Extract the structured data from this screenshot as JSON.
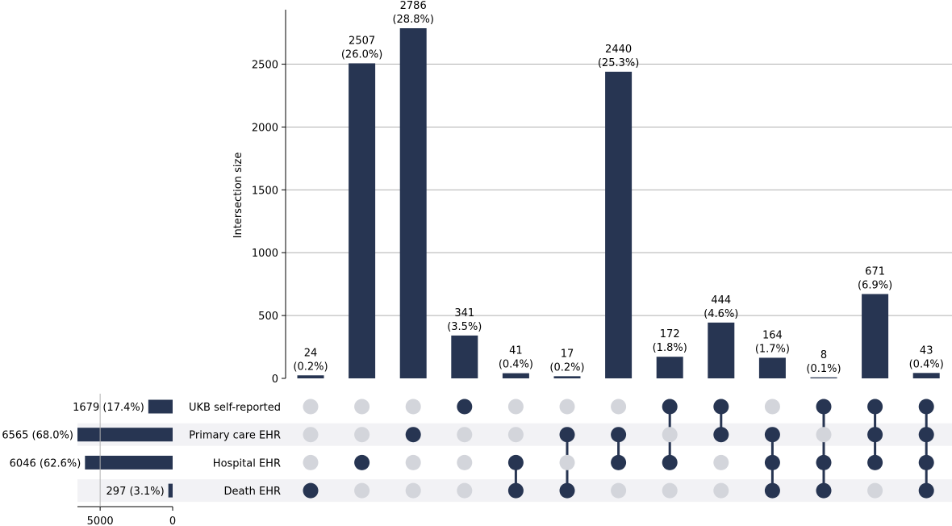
{
  "chart_data": {
    "type": "bar",
    "subtype": "upset",
    "colors": {
      "bar": "#273552",
      "dot_active": "#273552",
      "dot_inactive": "#d3d5db",
      "stripe": "#f2f2f5",
      "grid": "#b0b0b0"
    },
    "ylabel": "Intersection size",
    "ylim": [
      0,
      2900
    ],
    "yticks": [
      "0",
      "500",
      "1000",
      "1500",
      "2000",
      "2500"
    ],
    "grid": true,
    "sets": [
      {
        "name": "UKB self-reported",
        "size": 1679,
        "label": "1679 (17.4%)"
      },
      {
        "name": "Primary care EHR",
        "size": 6565,
        "label": "6565 (68.0%)"
      },
      {
        "name": "Hospital EHR",
        "size": 6046,
        "label": "6046 (62.6%)"
      },
      {
        "name": "Death EHR",
        "size": 297,
        "label": "297 (3.1%)"
      }
    ],
    "set_size_axis": {
      "ticks": [
        "5000",
        "0"
      ],
      "max": 6600
    },
    "intersections": [
      {
        "value": 24,
        "count_label": "24",
        "pct_label": "(0.2%)",
        "members": [
          3
        ]
      },
      {
        "value": 2507,
        "count_label": "2507",
        "pct_label": "(26.0%)",
        "members": [
          2
        ]
      },
      {
        "value": 2786,
        "count_label": "2786",
        "pct_label": "(28.8%)",
        "members": [
          1
        ]
      },
      {
        "value": 341,
        "count_label": "341",
        "pct_label": "(3.5%)",
        "members": [
          0
        ]
      },
      {
        "value": 41,
        "count_label": "41",
        "pct_label": "(0.4%)",
        "members": [
          2,
          3
        ]
      },
      {
        "value": 17,
        "count_label": "17",
        "pct_label": "(0.2%)",
        "members": [
          1,
          3
        ]
      },
      {
        "value": 2440,
        "count_label": "2440",
        "pct_label": "(25.3%)",
        "members": [
          1,
          2
        ]
      },
      {
        "value": 172,
        "count_label": "172",
        "pct_label": "(1.8%)",
        "members": [
          0,
          2
        ]
      },
      {
        "value": 444,
        "count_label": "444",
        "pct_label": "(4.6%)",
        "members": [
          0,
          1
        ]
      },
      {
        "value": 164,
        "count_label": "164",
        "pct_label": "(1.7%)",
        "members": [
          1,
          2,
          3
        ]
      },
      {
        "value": 8,
        "count_label": "8",
        "pct_label": "(0.1%)",
        "members": [
          0,
          2,
          3
        ]
      },
      {
        "value": 671,
        "count_label": "671",
        "pct_label": "(6.9%)",
        "members": [
          0,
          1,
          2
        ]
      },
      {
        "value": 43,
        "count_label": "43",
        "pct_label": "(0.4%)",
        "members": [
          0,
          1,
          2,
          3
        ]
      }
    ]
  }
}
